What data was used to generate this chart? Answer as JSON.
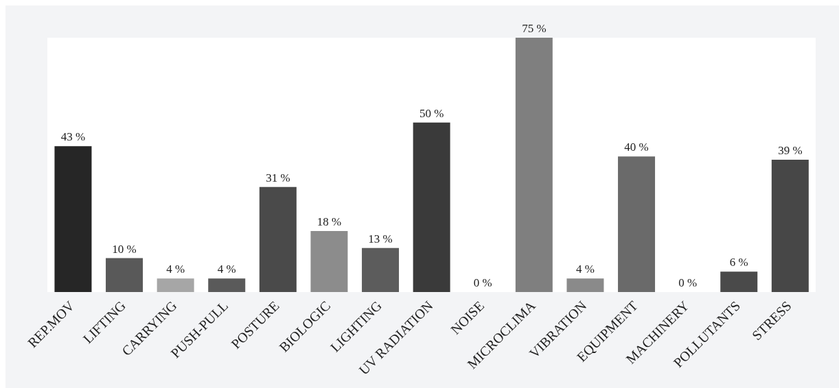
{
  "chart_data": {
    "type": "bar",
    "categories": [
      "REP.MOV",
      "LIFTING",
      "CARRYING",
      "PUSH-PULL",
      "POSTURE",
      "BIOLOGIC",
      "LIGHTING",
      "UV RADIATION",
      "NOISE",
      "MICROCLIMA",
      "VIBRATION",
      "EQUIPMENT",
      "MACHINERY",
      "POLLUTANTS",
      "STRESS"
    ],
    "values": [
      43,
      10,
      4,
      4,
      31,
      18,
      13,
      50,
      0,
      75,
      4,
      40,
      0,
      6,
      39
    ],
    "value_labels": [
      "43 %",
      "10 %",
      "4 %",
      "4 %",
      "31 %",
      "18 %",
      "13 %",
      "50 %",
      "0 %",
      "75 %",
      "4 %",
      "40 %",
      "0 %",
      "6 %",
      "39 %"
    ],
    "colors": [
      "#262626",
      "#595959",
      "#a6a6a6",
      "#5a5a5a",
      "#4a4a4a",
      "#8c8c8c",
      "#5c5c5c",
      "#3a3a3a",
      "#000000",
      "#7f7f7f",
      "#8a8a8a",
      "#6a6a6a",
      "#000000",
      "#4a4a4a",
      "#474747"
    ]
  }
}
